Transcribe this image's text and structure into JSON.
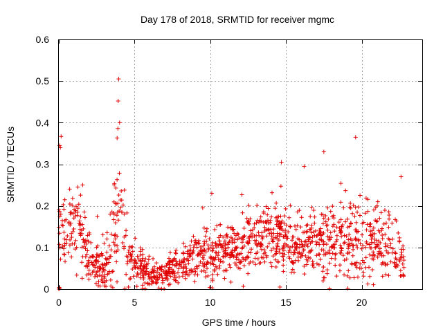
{
  "chart_data": {
    "type": "scatter",
    "title": "Day 178 of 2018, SRMTID for receiver mgmc",
    "xlabel": "GPS time / hours",
    "ylabel": "SRMTID / TECUs",
    "xlim": [
      0,
      24
    ],
    "ylim": [
      0,
      0.6
    ],
    "xticks": [
      0,
      5,
      10,
      15,
      20
    ],
    "yticks": [
      0,
      0.1,
      0.2,
      0.3,
      0.4,
      0.5,
      0.6
    ],
    "xtick_labels": [
      "0",
      "5",
      "10",
      "15",
      "20"
    ],
    "ytick_labels": [
      "0",
      "0.1",
      "0.2",
      "0.3",
      "0.4",
      "0.5",
      "0.6"
    ],
    "grid": true,
    "marker": "+",
    "point_color": "#e00000",
    "series_envelope": {
      "description": "median and approximate spread of SRMTID vs time",
      "x_range": [
        0,
        22.8
      ],
      "median": [
        [
          0.0,
          0.12
        ],
        [
          0.5,
          0.14
        ],
        [
          1.0,
          0.15
        ],
        [
          1.5,
          0.13
        ],
        [
          2.0,
          0.08
        ],
        [
          2.5,
          0.06
        ],
        [
          3.0,
          0.05
        ],
        [
          3.5,
          0.09
        ],
        [
          4.0,
          0.22
        ],
        [
          4.5,
          0.1
        ],
        [
          5.0,
          0.06
        ],
        [
          5.5,
          0.05
        ],
        [
          6.0,
          0.04
        ],
        [
          6.5,
          0.03
        ],
        [
          7.0,
          0.04
        ],
        [
          7.5,
          0.05
        ],
        [
          8.0,
          0.05
        ],
        [
          8.5,
          0.06
        ],
        [
          9.0,
          0.07
        ],
        [
          9.5,
          0.08
        ],
        [
          10.0,
          0.08
        ],
        [
          10.5,
          0.08
        ],
        [
          11.0,
          0.09
        ],
        [
          11.5,
          0.1
        ],
        [
          12.0,
          0.1
        ],
        [
          12.5,
          0.11
        ],
        [
          13.0,
          0.12
        ],
        [
          13.5,
          0.13
        ],
        [
          14.0,
          0.14
        ],
        [
          14.5,
          0.13
        ],
        [
          15.0,
          0.12
        ],
        [
          15.5,
          0.11
        ],
        [
          16.0,
          0.11
        ],
        [
          16.5,
          0.12
        ],
        [
          17.0,
          0.12
        ],
        [
          17.5,
          0.11
        ],
        [
          18.0,
          0.11
        ],
        [
          18.5,
          0.12
        ],
        [
          19.0,
          0.11
        ],
        [
          19.5,
          0.12
        ],
        [
          20.0,
          0.12
        ],
        [
          20.5,
          0.11
        ],
        [
          21.0,
          0.12
        ],
        [
          21.5,
          0.11
        ],
        [
          22.0,
          0.1
        ],
        [
          22.5,
          0.08
        ],
        [
          22.8,
          0.06
        ]
      ],
      "spread": [
        [
          0.0,
          0.1
        ],
        [
          0.5,
          0.08
        ],
        [
          1.0,
          0.08
        ],
        [
          1.5,
          0.08
        ],
        [
          2.0,
          0.06
        ],
        [
          2.5,
          0.05
        ],
        [
          3.0,
          0.05
        ],
        [
          3.5,
          0.08
        ],
        [
          4.0,
          0.12
        ],
        [
          4.5,
          0.07
        ],
        [
          5.0,
          0.05
        ],
        [
          5.5,
          0.04
        ],
        [
          6.0,
          0.03
        ],
        [
          6.5,
          0.025
        ],
        [
          7.0,
          0.03
        ],
        [
          7.5,
          0.03
        ],
        [
          8.0,
          0.04
        ],
        [
          8.5,
          0.04
        ],
        [
          9.0,
          0.05
        ],
        [
          9.5,
          0.05
        ],
        [
          10.0,
          0.06
        ],
        [
          10.5,
          0.05
        ],
        [
          11.0,
          0.05
        ],
        [
          11.5,
          0.05
        ],
        [
          12.0,
          0.06
        ],
        [
          12.5,
          0.06
        ],
        [
          13.0,
          0.06
        ],
        [
          13.5,
          0.06
        ],
        [
          14.0,
          0.07
        ],
        [
          14.5,
          0.07
        ],
        [
          15.0,
          0.07
        ],
        [
          15.5,
          0.07
        ],
        [
          16.0,
          0.07
        ],
        [
          16.5,
          0.07
        ],
        [
          17.0,
          0.08
        ],
        [
          17.5,
          0.08
        ],
        [
          18.0,
          0.08
        ],
        [
          18.5,
          0.08
        ],
        [
          19.0,
          0.08
        ],
        [
          19.5,
          0.08
        ],
        [
          20.0,
          0.08
        ],
        [
          20.5,
          0.08
        ],
        [
          21.0,
          0.07
        ],
        [
          21.5,
          0.07
        ],
        [
          22.0,
          0.06
        ],
        [
          22.5,
          0.05
        ],
        [
          22.8,
          0.04
        ]
      ]
    },
    "notable_points": [
      {
        "x": 3.95,
        "y": 0.505
      },
      {
        "x": 3.92,
        "y": 0.452
      },
      {
        "x": 3.9,
        "y": 0.386
      },
      {
        "x": 3.85,
        "y": 0.363
      },
      {
        "x": 0.15,
        "y": 0.367
      },
      {
        "x": 0.1,
        "y": 0.34
      },
      {
        "x": 0.05,
        "y": 0.345
      },
      {
        "x": 19.6,
        "y": 0.365
      },
      {
        "x": 17.5,
        "y": 0.33
      },
      {
        "x": 14.7,
        "y": 0.305
      },
      {
        "x": 16.2,
        "y": 0.295
      },
      {
        "x": 10.1,
        "y": 0.23
      },
      {
        "x": 9.5,
        "y": 0.195
      },
      {
        "x": 22.6,
        "y": 0.27
      },
      {
        "x": 0.0,
        "y": 0.0
      },
      {
        "x": 4.6,
        "y": 0.005
      },
      {
        "x": 14.6,
        "y": 0.005
      }
    ],
    "point_count": 1400,
    "random_seed": 178
  }
}
